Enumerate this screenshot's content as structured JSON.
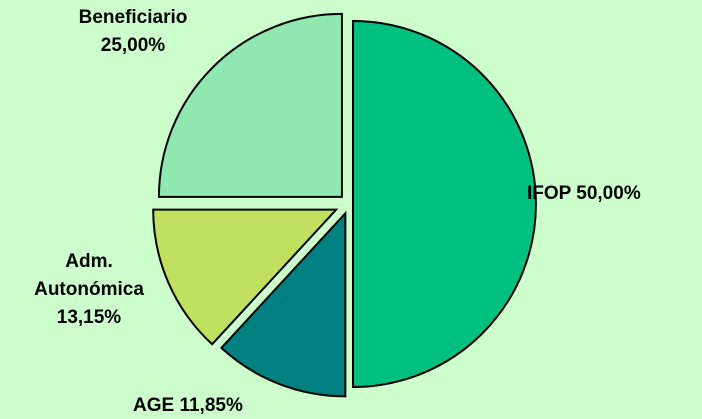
{
  "chart_data": {
    "type": "pie",
    "title": "",
    "slices": [
      {
        "label": "IFOP",
        "value": 50.0,
        "value_text": "IFOP 50,00%",
        "color": "#00c080"
      },
      {
        "label": "AGE",
        "value": 11.85,
        "value_text": "AGE 11,85%",
        "color": "#008080"
      },
      {
        "label": "Adm. Autonómica",
        "value": 13.15,
        "label_lines": [
          "Adm.",
          "Autonómica",
          "13,15%"
        ],
        "color": "#c0e060"
      },
      {
        "label": "Beneficiario",
        "value": 25.0,
        "label_lines": [
          "Beneficiario",
          "25,00%"
        ],
        "color": "#90e8b0"
      }
    ],
    "legend": "none",
    "start": "12 o'clock, clockwise"
  },
  "colors": {
    "background": "#ccffcc",
    "outline": "#000000"
  }
}
